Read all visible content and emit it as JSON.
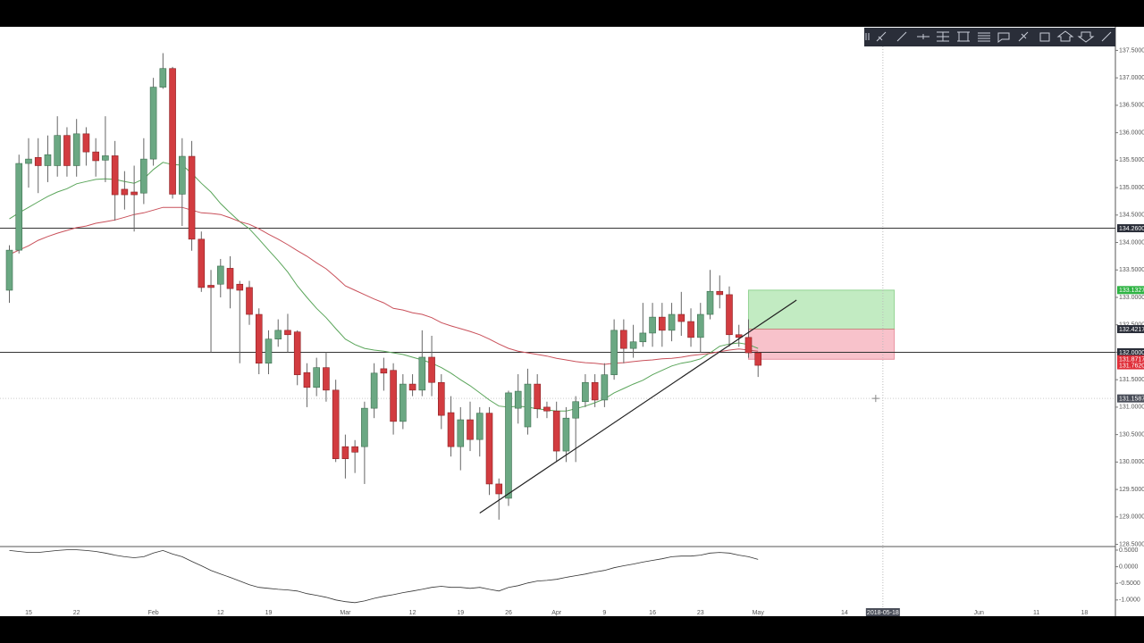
{
  "chart_data": [
    {
      "type": "candlestick",
      "categories": [
        null,
        null,
        "15",
        null,
        null,
        null,
        null,
        "22",
        null,
        null,
        null,
        null,
        null,
        null,
        null,
        "Feb",
        null,
        null,
        null,
        null,
        null,
        null,
        "12",
        null,
        null,
        null,
        null,
        "19",
        null,
        null,
        null,
        null,
        null,
        null,
        null,
        "Mar",
        null,
        null,
        null,
        null,
        null,
        null,
        "12",
        null,
        null,
        null,
        null,
        "19",
        null,
        null,
        null,
        null,
        "26",
        null,
        null,
        null,
        null,
        "Apr",
        null,
        null,
        null,
        null,
        "9",
        null,
        null,
        null,
        null,
        "16",
        null,
        null,
        null,
        null,
        "23",
        null,
        null,
        null,
        null,
        null,
        "May",
        null,
        null,
        null,
        null,
        null,
        null,
        null,
        null,
        "14",
        null,
        null,
        null,
        null,
        null,
        null,
        null,
        null,
        null,
        null,
        null,
        null,
        null,
        "Jun",
        null,
        null,
        null,
        null,
        null,
        "11",
        null,
        null,
        null,
        null,
        "18",
        null,
        null,
        null
      ],
      "open": [
        133.13,
        133.86,
        135.44,
        135.55,
        135.4,
        135.4,
        135.95,
        135.4,
        135.98,
        135.65,
        135.5,
        135.58,
        134.97,
        134.92,
        134.9,
        135.52,
        136.83,
        137.17,
        134.88,
        135.57,
        134.06,
        133.22,
        133.24,
        133.53,
        133.24,
        133.18,
        132.69,
        131.8,
        132.24,
        132.4,
        132.37,
        131.63,
        131.36,
        131.72,
        131.31,
        130.28,
        130.28,
        130.28,
        130.98,
        131.7,
        131.67,
        130.74,
        131.42,
        131.31,
        131.91,
        131.45,
        130.9,
        130.28,
        130.77,
        130.41,
        130.89,
        129.6,
        129.34,
        130.98,
        130.64,
        131.42,
        131.0,
        130.93,
        130.2,
        130.8,
        131.1,
        131.45,
        131.13,
        131.59,
        132.4,
        132.07,
        132.19,
        132.35,
        132.64,
        132.4,
        132.69,
        132.56,
        132.27,
        132.69,
        133.11,
        133.05,
        132.32,
        132.27,
        131.99,
        null,
        null,
        null,
        null,
        null,
        null,
        null,
        null,
        null,
        null,
        null,
        null,
        null,
        null,
        null,
        null,
        null,
        null,
        null,
        null,
        null,
        null,
        null,
        null,
        null,
        null,
        null,
        null,
        null,
        null,
        null,
        null,
        null,
        null,
        null,
        null,
        null
      ],
      "high": [
        133.95,
        135.6,
        135.9,
        135.9,
        135.95,
        136.3,
        136.1,
        136.25,
        136.1,
        135.9,
        136.3,
        135.85,
        135.3,
        135.4,
        135.9,
        137.0,
        137.45,
        137.2,
        135.9,
        135.85,
        134.2,
        133.5,
        133.7,
        133.75,
        133.3,
        133.3,
        132.8,
        132.4,
        132.6,
        132.7,
        132.4,
        131.8,
        131.9,
        132.0,
        131.5,
        130.5,
        130.4,
        131.1,
        131.8,
        131.9,
        131.8,
        131.6,
        131.6,
        132.4,
        132.3,
        131.6,
        131.2,
        131.0,
        131.1,
        131.0,
        131.0,
        129.7,
        131.3,
        131.6,
        131.7,
        131.6,
        131.1,
        131.1,
        131.0,
        131.2,
        131.6,
        131.6,
        131.8,
        132.6,
        132.6,
        132.5,
        132.9,
        132.9,
        132.9,
        132.9,
        133.1,
        132.8,
        132.9,
        133.5,
        133.4,
        133.2,
        132.5,
        132.6,
        132.0,
        null,
        null,
        null,
        null,
        null,
        null,
        null,
        null,
        null,
        null,
        null,
        null,
        null,
        null,
        null,
        null,
        null,
        null,
        null,
        null,
        null,
        null,
        null,
        null,
        null,
        null,
        null,
        null,
        null,
        null,
        null,
        null,
        null,
        null,
        null,
        null,
        null
      ],
      "low": [
        132.9,
        133.8,
        135.0,
        134.9,
        135.1,
        135.2,
        135.2,
        135.2,
        135.4,
        135.2,
        135.1,
        134.4,
        134.6,
        134.2,
        134.7,
        135.4,
        136.8,
        134.8,
        134.3,
        133.85,
        133.1,
        132.0,
        133.0,
        132.8,
        131.8,
        132.5,
        131.6,
        131.6,
        132.1,
        132.0,
        131.4,
        131.0,
        131.2,
        131.1,
        130.0,
        129.7,
        129.8,
        129.6,
        130.8,
        131.3,
        130.5,
        130.6,
        131.2,
        131.2,
        131.2,
        130.6,
        130.1,
        129.85,
        130.2,
        130.1,
        129.4,
        128.95,
        129.2,
        130.7,
        130.5,
        130.8,
        130.8,
        130.0,
        130.0,
        130.0,
        131.0,
        131.0,
        131.0,
        131.5,
        131.8,
        131.9,
        132.1,
        132.1,
        132.1,
        132.2,
        132.3,
        132.1,
        132.0,
        132.6,
        132.8,
        132.1,
        132.1,
        131.9,
        131.55,
        null,
        null,
        null,
        null,
        null,
        null,
        null,
        null,
        null,
        null,
        null,
        null,
        null,
        null,
        null,
        null,
        null,
        null,
        null,
        null,
        null,
        null,
        null,
        null,
        null,
        null,
        null,
        null,
        null,
        null,
        null,
        null,
        null,
        null,
        null,
        null,
        null
      ],
      "close": [
        133.86,
        135.44,
        135.52,
        135.4,
        135.6,
        135.95,
        135.4,
        135.98,
        135.65,
        135.49,
        135.58,
        134.87,
        134.87,
        134.87,
        135.52,
        136.83,
        137.17,
        134.88,
        135.57,
        134.06,
        133.18,
        133.18,
        133.57,
        133.16,
        133.13,
        132.69,
        131.8,
        132.24,
        132.4,
        132.32,
        131.59,
        131.36,
        131.72,
        131.31,
        130.06,
        130.06,
        130.18,
        130.98,
        131.62,
        131.62,
        130.74,
        131.42,
        131.31,
        131.91,
        131.45,
        130.85,
        130.28,
        130.77,
        130.41,
        130.89,
        129.6,
        129.42,
        131.26,
        131.29,
        131.42,
        130.97,
        130.93,
        130.2,
        130.8,
        131.1,
        131.45,
        131.13,
        131.59,
        132.4,
        132.07,
        132.19,
        132.35,
        132.64,
        132.4,
        132.69,
        132.56,
        132.27,
        132.69,
        133.11,
        133.05,
        132.32,
        132.27,
        131.99,
        131.762,
        null,
        null,
        null,
        null,
        null,
        null,
        null,
        null,
        null,
        null,
        null,
        null,
        null,
        null,
        null,
        null,
        null,
        null,
        null,
        null,
        null,
        null,
        null,
        null,
        null,
        null,
        null,
        null,
        null,
        null,
        null,
        null,
        null,
        null,
        null,
        null,
        null
      ],
      "up_color": "#6ba883",
      "down_color": "#d23c40",
      "last_price_label": "131.7620",
      "series": [
        {
          "color": "#5aa55a",
          "values": [
            134.43,
            134.54,
            134.64,
            134.74,
            134.84,
            134.92,
            134.98,
            135.07,
            135.11,
            135.15,
            135.16,
            135.15,
            135.11,
            135.08,
            135.16,
            135.33,
            135.46,
            135.42,
            135.41,
            135.26,
            135.08,
            134.92,
            134.71,
            134.54,
            134.38,
            134.25,
            134.06,
            133.86,
            133.67,
            133.46,
            133.21,
            133.0,
            132.8,
            132.63,
            132.43,
            132.24,
            132.14,
            132.07,
            132.04,
            132.02,
            131.99,
            131.96,
            131.91,
            131.86,
            131.8,
            131.72,
            131.62,
            131.5,
            131.39,
            131.26,
            131.13,
            131.02,
            131.0,
            131.02,
            131.0,
            130.97,
            130.95,
            130.93,
            130.93,
            130.97,
            131.02,
            131.08,
            131.15,
            131.26,
            131.34,
            131.42,
            131.49,
            131.59,
            131.67,
            131.75,
            131.8,
            131.83,
            131.88,
            131.99,
            132.11,
            132.15,
            132.17,
            132.14,
            132.07,
            null,
            null,
            null,
            null,
            null,
            null,
            null,
            null,
            null,
            null,
            null,
            null,
            null,
            null,
            null,
            null,
            null,
            null,
            null,
            null,
            null,
            null,
            null,
            null,
            null,
            null,
            null,
            null,
            null,
            null,
            null,
            null,
            null,
            null,
            null,
            null,
            null
          ]
        },
        {
          "color": "#c9505a",
          "values": [
            133.78,
            133.86,
            133.94,
            134.04,
            134.11,
            134.17,
            134.22,
            134.27,
            134.3,
            134.35,
            134.38,
            134.41,
            134.46,
            134.51,
            134.54,
            134.59,
            134.64,
            134.64,
            134.64,
            134.59,
            134.54,
            134.53,
            134.51,
            134.45,
            134.38,
            134.33,
            134.25,
            134.15,
            134.06,
            133.96,
            133.85,
            133.75,
            133.63,
            133.52,
            133.37,
            133.21,
            133.13,
            133.05,
            132.97,
            132.9,
            132.8,
            132.77,
            132.72,
            132.69,
            132.63,
            132.54,
            132.48,
            132.43,
            132.38,
            132.32,
            132.24,
            132.15,
            132.07,
            132.02,
            131.99,
            131.96,
            131.93,
            131.89,
            131.86,
            131.83,
            131.81,
            131.8,
            131.78,
            131.8,
            131.81,
            131.83,
            131.85,
            131.86,
            131.88,
            131.89,
            131.91,
            131.94,
            131.96,
            131.98,
            132.01,
            132.04,
            132.06,
            132.04,
            132.02,
            null,
            null,
            null,
            null,
            null,
            null,
            null,
            null,
            null,
            null,
            null,
            null,
            null,
            null,
            null,
            null,
            null,
            null,
            null,
            null,
            null,
            null,
            null,
            null,
            null,
            null,
            null,
            null,
            null,
            null,
            null,
            null,
            null,
            null,
            null,
            null,
            null
          ]
        }
      ],
      "ylim": [
        128.46,
        137.93
      ],
      "yticks": [
        {
          "value": 137.5,
          "label": "137.5000"
        },
        {
          "value": 137.0,
          "label": "137.0000"
        },
        {
          "value": 136.5,
          "label": "136.5000"
        },
        {
          "value": 136.0,
          "label": "136.0000"
        },
        {
          "value": 135.5,
          "label": "135.5000"
        },
        {
          "value": 135.0,
          "label": "135.0000"
        },
        {
          "value": 134.5,
          "label": "134.5000"
        },
        {
          "value": 134.0,
          "label": "134.0000"
        },
        {
          "value": 133.5,
          "label": "133.5000"
        },
        {
          "value": 133.0,
          "label": "133.0000"
        },
        {
          "value": 132.5,
          "label": "132.5000"
        },
        {
          "value": 132.0,
          "label": "132.0000"
        },
        {
          "value": 131.5,
          "label": "131.5000"
        },
        {
          "value": 131.0,
          "label": "131.0000"
        },
        {
          "value": 130.5,
          "label": "130.5000"
        },
        {
          "value": 130.0,
          "label": "130.0000"
        },
        {
          "value": 129.5,
          "label": "129.5000"
        },
        {
          "value": 129.0,
          "label": "129.0000"
        },
        {
          "value": 128.5,
          "label": "128.5000"
        }
      ],
      "hlines": [
        {
          "value": 134.26,
          "label": "134.2600"
        },
        {
          "value": 132.0,
          "label": "132.0000"
        }
      ],
      "trendline": {
        "start_index": 49,
        "start": 129.07,
        "end_index": 82,
        "end": 132.95
      },
      "position": {
        "start_index": 77,
        "end_index": 92,
        "target": 133.1327,
        "target_label": "133.1327",
        "entry": 132.4217,
        "entry_label": "132.4217",
        "stop": 131.8717,
        "stop_label": "131.8717"
      },
      "crosshair": {
        "index": 91,
        "x_label": "2018-05-18",
        "price": 131.1587,
        "y_label": "131.1587"
      }
    },
    {
      "type": "line",
      "series": [
        {
          "color": "#333333",
          "values": [
            0.49,
            0.46,
            0.43,
            0.43,
            0.46,
            0.49,
            0.51,
            0.51,
            0.49,
            0.46,
            0.41,
            0.35,
            0.3,
            0.27,
            0.3,
            0.41,
            0.49,
            0.38,
            0.3,
            0.16,
            0.03,
            -0.11,
            -0.22,
            -0.32,
            -0.43,
            -0.54,
            -0.62,
            -0.65,
            -0.68,
            -0.7,
            -0.73,
            -0.81,
            -0.86,
            -0.92,
            -1.0,
            -1.05,
            -1.08,
            -1.03,
            -0.95,
            -0.89,
            -0.84,
            -0.78,
            -0.73,
            -0.68,
            -0.62,
            -0.59,
            -0.62,
            -0.62,
            -0.65,
            -0.62,
            -0.68,
            -0.73,
            -0.62,
            -0.57,
            -0.49,
            -0.43,
            -0.41,
            -0.38,
            -0.32,
            -0.27,
            -0.22,
            -0.16,
            -0.11,
            -0.03,
            0.03,
            0.08,
            0.14,
            0.19,
            0.24,
            0.3,
            0.32,
            0.32,
            0.35,
            0.41,
            0.43,
            0.41,
            0.35,
            0.3,
            0.22,
            null,
            null,
            null,
            null,
            null,
            null,
            null,
            null,
            null,
            null,
            null,
            null,
            null,
            null,
            null,
            null,
            null,
            null,
            null,
            null,
            null,
            null,
            null,
            null,
            null,
            null,
            null,
            null,
            null,
            null,
            null,
            null,
            null,
            null,
            null,
            null,
            null
          ]
        }
      ],
      "ylim": [
        -1.22,
        0.58
      ],
      "yticks": [
        {
          "value": 0.5,
          "label": "0.5000"
        },
        {
          "value": 0,
          "label": "0.0000"
        },
        {
          "value": -0.5,
          "label": "-0.5000"
        },
        {
          "value": -1,
          "label": "-1.0000"
        }
      ]
    }
  ]
}
